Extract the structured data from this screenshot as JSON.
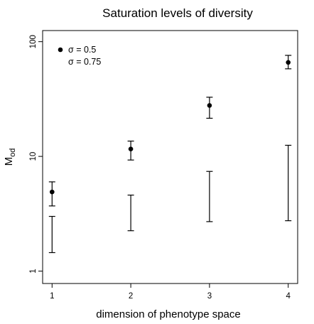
{
  "chart_data": {
    "type": "scatter",
    "title": "Saturation levels of diversity",
    "xlabel": "dimension of phenotype space",
    "ylabel": "M",
    "ylabel_sub": "od",
    "x_ticks": [
      1,
      2,
      3,
      4
    ],
    "x_tick_labels": [
      "1",
      "2",
      "3",
      "4"
    ],
    "xlim": [
      0.88,
      4.12
    ],
    "y_scale": "log",
    "y_ticks": [
      1,
      10,
      100
    ],
    "y_tick_labels": [
      "1",
      "10",
      "100"
    ],
    "ylim": [
      0.78,
      125
    ],
    "legend_position": "top-left",
    "grid": false,
    "series": [
      {
        "name": "σ = 0.5",
        "marker": "filled-circle",
        "has_point": true,
        "x": [
          1,
          2,
          3,
          4
        ],
        "y": [
          4.9,
          11.6,
          27.8,
          66
        ],
        "y_low": [
          3.7,
          9.3,
          21.5,
          58
        ],
        "y_high": [
          6.0,
          13.6,
          32.8,
          76
        ]
      },
      {
        "name": "σ = 0.75",
        "marker": "none",
        "has_point": false,
        "x": [
          1,
          2,
          3,
          4
        ],
        "y_low": [
          1.45,
          2.25,
          2.7,
          2.75
        ],
        "y_high": [
          3.0,
          4.6,
          7.4,
          12.5
        ]
      }
    ]
  }
}
